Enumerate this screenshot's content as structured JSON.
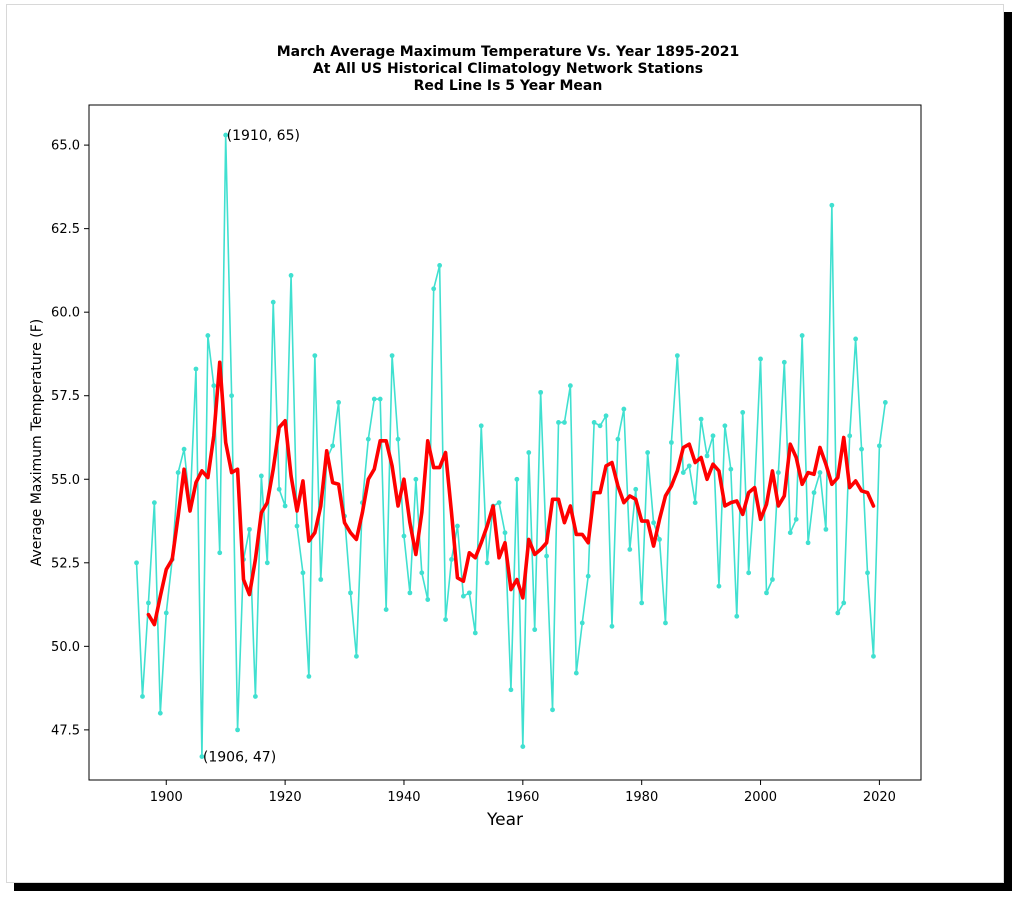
{
  "chart_data": {
    "type": "line",
    "title_lines": [
      "March Average Maximum Temperature Vs. Year 1895-2021",
      "At All US Historical Climatology Network Stations",
      "Red Line Is 5 Year Mean"
    ],
    "xlabel": "Year",
    "ylabel": "Average Maximum Temperature (F)",
    "xlim": [
      1887,
      2027
    ],
    "ylim": [
      46.0,
      66.2
    ],
    "x_ticks": [
      1900,
      1920,
      1940,
      1960,
      1980,
      2000,
      2020
    ],
    "x_tick_labels": [
      "1900",
      "1920",
      "1940",
      "1960",
      "1980",
      "2000",
      "2020"
    ],
    "y_ticks": [
      47.5,
      50.0,
      52.5,
      55.0,
      57.5,
      60.0,
      62.5,
      65.0
    ],
    "y_tick_labels": [
      "47.5",
      "50.0",
      "52.5",
      "55.0",
      "57.5",
      "60.0",
      "62.5",
      "65.0"
    ],
    "grid": false,
    "legend": "none",
    "colors": {
      "annual": "#40e0d0",
      "mean": "#ff0000"
    },
    "annotations": [
      {
        "text": "(1910, 65)",
        "x": 1910,
        "y": 65.3
      },
      {
        "text": "(1906, 47)",
        "x": 1906,
        "y": 46.7
      }
    ],
    "series": [
      {
        "style": "line-markers",
        "x_start": 1895,
        "values": [
          52.5,
          48.5,
          51.3,
          54.3,
          48.0,
          51.0,
          52.6,
          55.2,
          55.9,
          54.2,
          58.3,
          46.7,
          59.3,
          57.8,
          52.8,
          65.3,
          57.5,
          47.5,
          52.6,
          53.5,
          48.5,
          55.1,
          52.5,
          60.3,
          54.7,
          54.2,
          61.1,
          53.6,
          52.2,
          49.1,
          58.7,
          52.0,
          55.6,
          56.0,
          57.3,
          53.9,
          51.6,
          49.7,
          54.3,
          56.2,
          57.4,
          57.4,
          51.1,
          58.7,
          56.2,
          53.3,
          51.6,
          55.0,
          52.2,
          51.4,
          60.7,
          61.4,
          50.8,
          52.6,
          53.6,
          51.5,
          51.6,
          50.4,
          56.6,
          52.5,
          54.2,
          54.3,
          53.4,
          48.7,
          55.0,
          47.0,
          55.8,
          50.5,
          57.6,
          52.7,
          48.1,
          56.7,
          56.7,
          57.8,
          49.2,
          50.7,
          52.1,
          56.7,
          56.6,
          56.9,
          50.6,
          56.2,
          57.1,
          52.9,
          54.7,
          51.3,
          55.8,
          53.7,
          53.2,
          50.7,
          56.1,
          58.7,
          55.2,
          55.4,
          54.3,
          56.8,
          55.7,
          56.3,
          51.8,
          56.6,
          55.3,
          50.9,
          57.0,
          52.2,
          54.7,
          58.6,
          51.6,
          52.0,
          55.2,
          58.5,
          53.4,
          53.8,
          59.3,
          53.1,
          54.6,
          55.2,
          53.5,
          63.2,
          51.0,
          51.3,
          56.3,
          59.2,
          55.9,
          52.2,
          49.7,
          56.0,
          57.3
        ]
      },
      {
        "style": "thick-line",
        "x_start": 1897,
        "values": [
          50.95,
          50.65,
          51.5,
          52.3,
          52.6,
          53.9,
          55.3,
          54.05,
          54.9,
          55.25,
          55.05,
          56.3,
          58.5,
          56.1,
          55.2,
          55.3,
          52.0,
          51.55,
          52.6,
          54.0,
          54.3,
          55.3,
          56.55,
          56.75,
          55.1,
          54.05,
          54.95,
          53.15,
          53.4,
          54.2,
          55.85,
          54.9,
          54.85,
          53.7,
          53.4,
          53.2,
          54.0,
          55.0,
          55.3,
          56.15,
          56.15,
          55.4,
          54.2,
          55.0,
          53.7,
          52.75,
          54.0,
          56.15,
          55.35,
          55.35,
          55.8,
          54.0,
          52.05,
          51.95,
          52.8,
          52.65,
          53.1,
          53.6,
          54.2,
          52.65,
          53.1,
          51.7,
          52.0,
          51.45,
          53.2,
          52.75,
          52.9,
          53.1,
          54.4,
          54.4,
          53.7,
          54.2,
          53.35,
          53.35,
          53.1,
          54.6,
          54.6,
          55.4,
          55.5,
          54.8,
          54.3,
          54.5,
          54.4,
          53.75,
          53.75,
          53.0,
          53.8,
          54.5,
          54.8,
          55.25,
          55.95,
          56.05,
          55.5,
          55.65,
          55.0,
          55.45,
          55.25,
          54.2,
          54.3,
          54.35,
          53.95,
          54.6,
          54.75,
          53.8,
          54.25,
          55.25,
          54.2,
          54.5,
          56.05,
          55.65,
          54.85,
          55.2,
          55.15,
          55.95,
          55.45,
          54.85,
          55.05,
          56.25,
          54.75,
          54.95,
          54.65,
          54.6,
          54.2
        ]
      }
    ]
  }
}
